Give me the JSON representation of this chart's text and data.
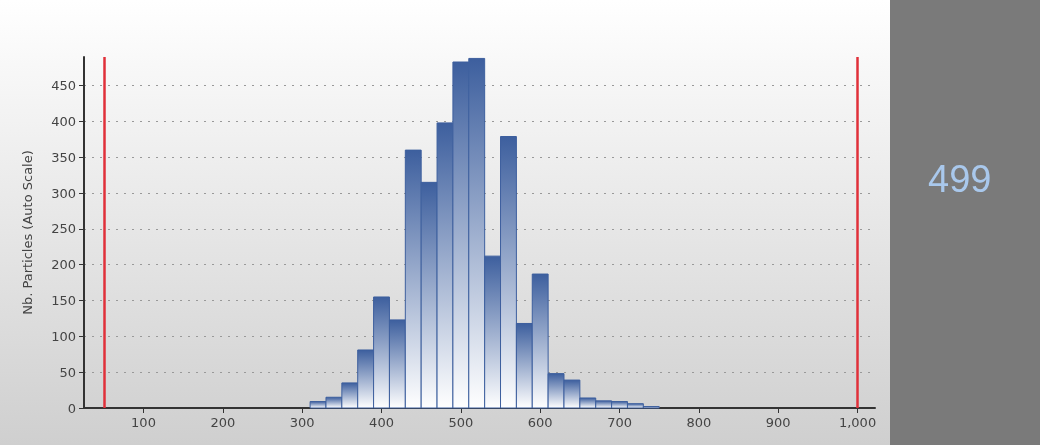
{
  "chart_data": {
    "type": "histogram",
    "ylabel": "Nb. Particles (Auto Scale)",
    "bins": [
      310,
      330,
      350,
      370,
      390,
      410,
      430,
      450,
      470,
      490,
      510,
      530,
      550,
      570,
      590,
      610,
      630,
      650,
      670,
      690,
      710,
      730,
      750
    ],
    "values": [
      9,
      15,
      35,
      81,
      155,
      123,
      360,
      315,
      398,
      483,
      488,
      212,
      379,
      118,
      187,
      48,
      39,
      14,
      10,
      9,
      6,
      2
    ],
    "color": "#3d5f9e",
    "xlim": [
      25,
      1022
    ],
    "ylim": [
      0,
      490
    ],
    "xticks": [
      100,
      200,
      300,
      400,
      500,
      600,
      700,
      800,
      900,
      {
        "value": 1000,
        "label": "1,000"
      }
    ],
    "yticks": [
      0,
      50,
      100,
      150,
      200,
      250,
      300,
      350,
      400,
      450
    ],
    "grid": "y",
    "ref_lines": [
      {
        "axis": "x",
        "value": 50,
        "color": "#e0303a"
      },
      {
        "axis": "x",
        "value": 1000,
        "color": "#e0303a"
      }
    ],
    "annotations": [
      "499"
    ]
  }
}
